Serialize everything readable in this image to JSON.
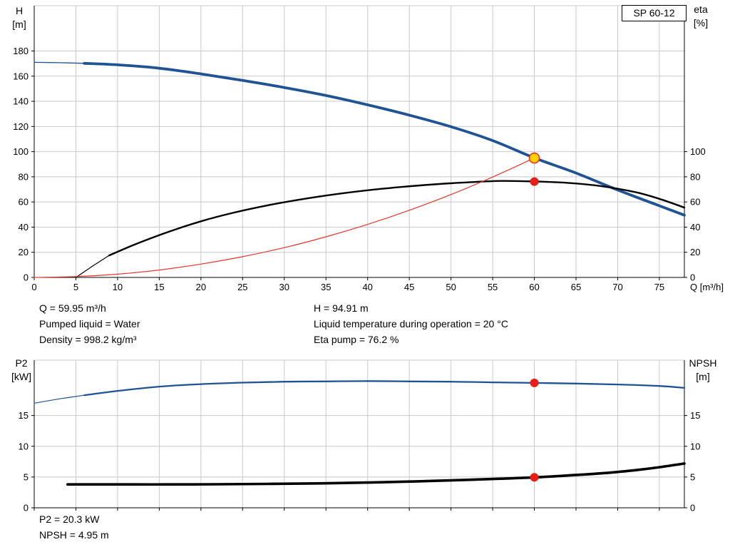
{
  "pump_label": "SP 60-12",
  "top_chart": {
    "y_left_unit": [
      "H",
      "[m]"
    ],
    "y_right_unit": [
      "eta",
      "[%]"
    ]
  },
  "bottom_chart": {
    "y_left_unit": [
      "P2",
      "[kW]"
    ],
    "y_right_unit": [
      "NPSH",
      "[m]"
    ]
  },
  "annotations": {
    "q": "Q = 59.95 m³/h",
    "h": "H = 94.91 m",
    "pumped_liquid": "Pumped liquid = Water",
    "liquid_temp": "Liquid temperature during operation = 20 °C",
    "density": "Density = 998.2 kg/m³",
    "eta_pump": "Eta pump = 76.2 %",
    "p2": "P2 = 20.3 kW",
    "npsh": "NPSH = 4.95 m"
  },
  "colors": {
    "curve_blue": "#1f5394",
    "curve_black": "#000000",
    "curve_red": "#e8362c",
    "marker_yellow": "#ffd200",
    "marker_red": "#e81f19",
    "grid": "#c9c9c9",
    "axis": "#000000"
  },
  "chart_data": [
    {
      "type": "line",
      "title": "SP 60-12",
      "xlabel": "Q [m³/h]",
      "ylabel_left": "H [m]",
      "ylabel_right": "eta [%]",
      "xlim": [
        0,
        78
      ],
      "ylim": [
        0,
        216
      ],
      "grid": true,
      "x_ticks": [
        0,
        5,
        10,
        15,
        20,
        25,
        30,
        35,
        40,
        45,
        50,
        55,
        60,
        65,
        70,
        75
      ],
      "y_ticks_left": [
        0,
        20,
        40,
        60,
        80,
        100,
        120,
        140,
        160,
        180
      ],
      "y_ticks_right": [
        0,
        20,
        40,
        60,
        80,
        100
      ],
      "series": [
        {
          "name": "head-curve-lead",
          "color": "curve_blue",
          "width": 1.3,
          "points": [
            [
              0,
              171
            ],
            [
              3,
              170.7
            ],
            [
              6,
              170.2
            ]
          ]
        },
        {
          "name": "head-curve",
          "color": "curve_blue",
          "width": 3.8,
          "points": [
            [
              6,
              170.2
            ],
            [
              10,
              169
            ],
            [
              15,
              166.3
            ],
            [
              20,
              161.8
            ],
            [
              25,
              156.6
            ],
            [
              30,
              151
            ],
            [
              35,
              144.6
            ],
            [
              40,
              137.2
            ],
            [
              45,
              129
            ],
            [
              50,
              119.8
            ],
            [
              55,
              108.8
            ],
            [
              60,
              95
            ],
            [
              65,
              83
            ],
            [
              70,
              69.5
            ],
            [
              75,
              57
            ],
            [
              78,
              49.5
            ]
          ]
        },
        {
          "name": "eta-curve-lead",
          "color": "curve_black",
          "width": 1.2,
          "points": [
            [
              5,
              0
            ],
            [
              7,
              9
            ],
            [
              9,
              17.5
            ]
          ]
        },
        {
          "name": "eta-curve",
          "color": "curve_black",
          "width": 2.4,
          "points": [
            [
              9,
              17.5
            ],
            [
              12,
              26
            ],
            [
              16,
              36
            ],
            [
              20,
              44.6
            ],
            [
              24,
              51.6
            ],
            [
              28,
              57.3
            ],
            [
              32,
              62
            ],
            [
              36,
              66
            ],
            [
              40,
              69.3
            ],
            [
              44,
              71.9
            ],
            [
              48,
              74
            ],
            [
              52,
              75.6
            ],
            [
              56,
              76.7
            ],
            [
              60,
              76.3
            ],
            [
              64,
              75.2
            ],
            [
              68,
              72.6
            ],
            [
              72,
              68
            ],
            [
              75,
              62.5
            ],
            [
              78,
              55.5
            ]
          ]
        },
        {
          "name": "system-curve",
          "color": "curve_red",
          "width": 1.2,
          "points": [
            [
              0,
              0
            ],
            [
              5,
              0.7
            ],
            [
              10,
              2.6
            ],
            [
              15,
              5.9
            ],
            [
              20,
              10.6
            ],
            [
              25,
              16.5
            ],
            [
              30,
              23.7
            ],
            [
              35,
              32.3
            ],
            [
              40,
              42.2
            ],
            [
              45,
              53.4
            ],
            [
              50,
              65.9
            ],
            [
              55,
              79.8
            ],
            [
              60,
              94.9
            ]
          ]
        }
      ],
      "markers": [
        {
          "name": "duty-point-head",
          "x": 60,
          "y": 94.9,
          "r": 7,
          "fill": "marker_yellow",
          "stroke": "curve_red",
          "stroke_width": 1.6
        },
        {
          "name": "duty-point-eta",
          "x": 60,
          "y": 76.2,
          "r": 5.5,
          "fill": "marker_red",
          "stroke": "marker_red",
          "stroke_width": 1
        }
      ]
    },
    {
      "type": "line",
      "title": "",
      "xlabel": "",
      "ylabel_left": "P2 [kW]",
      "ylabel_right": "NPSH [m]",
      "xlim": [
        0,
        78
      ],
      "ylim": [
        0,
        24
      ],
      "grid": true,
      "x_ticks": [
        0,
        5,
        10,
        15,
        20,
        25,
        30,
        35,
        40,
        45,
        50,
        55,
        60,
        65,
        70,
        75
      ],
      "y_ticks_left": [
        0,
        5,
        10,
        15
      ],
      "y_ticks_right": [
        0,
        5,
        10,
        15
      ],
      "series": [
        {
          "name": "p2-curve-lead",
          "color": "curve_blue",
          "width": 1.2,
          "points": [
            [
              0,
              17
            ],
            [
              3,
              17.7
            ],
            [
              6,
              18.3
            ]
          ]
        },
        {
          "name": "p2-curve",
          "color": "curve_blue",
          "width": 2.3,
          "points": [
            [
              6,
              18.3
            ],
            [
              10,
              19
            ],
            [
              15,
              19.7
            ],
            [
              20,
              20.1
            ],
            [
              25,
              20.35
            ],
            [
              30,
              20.5
            ],
            [
              35,
              20.55
            ],
            [
              40,
              20.6
            ],
            [
              45,
              20.55
            ],
            [
              50,
              20.5
            ],
            [
              55,
              20.4
            ],
            [
              60,
              20.3
            ],
            [
              65,
              20.2
            ],
            [
              70,
              20.05
            ],
            [
              75,
              19.8
            ],
            [
              78,
              19.5
            ]
          ]
        },
        {
          "name": "npsh-curve",
          "color": "curve_black",
          "width": 3.6,
          "points": [
            [
              4,
              3.8
            ],
            [
              10,
              3.8
            ],
            [
              16,
              3.8
            ],
            [
              22,
              3.83
            ],
            [
              28,
              3.88
            ],
            [
              34,
              3.97
            ],
            [
              40,
              4.1
            ],
            [
              46,
              4.3
            ],
            [
              52,
              4.55
            ],
            [
              56,
              4.73
            ],
            [
              60,
              4.95
            ],
            [
              64,
              5.25
            ],
            [
              68,
              5.6
            ],
            [
              72,
              6.1
            ],
            [
              75,
              6.6
            ],
            [
              78,
              7.2
            ]
          ]
        }
      ],
      "markers": [
        {
          "name": "duty-point-p2",
          "x": 60,
          "y": 20.3,
          "r": 5.5,
          "fill": "marker_red",
          "stroke": "marker_red",
          "stroke_width": 1
        },
        {
          "name": "duty-point-npsh",
          "x": 60,
          "y": 4.95,
          "r": 5.5,
          "fill": "marker_red",
          "stroke": "marker_red",
          "stroke_width": 1
        }
      ]
    }
  ]
}
